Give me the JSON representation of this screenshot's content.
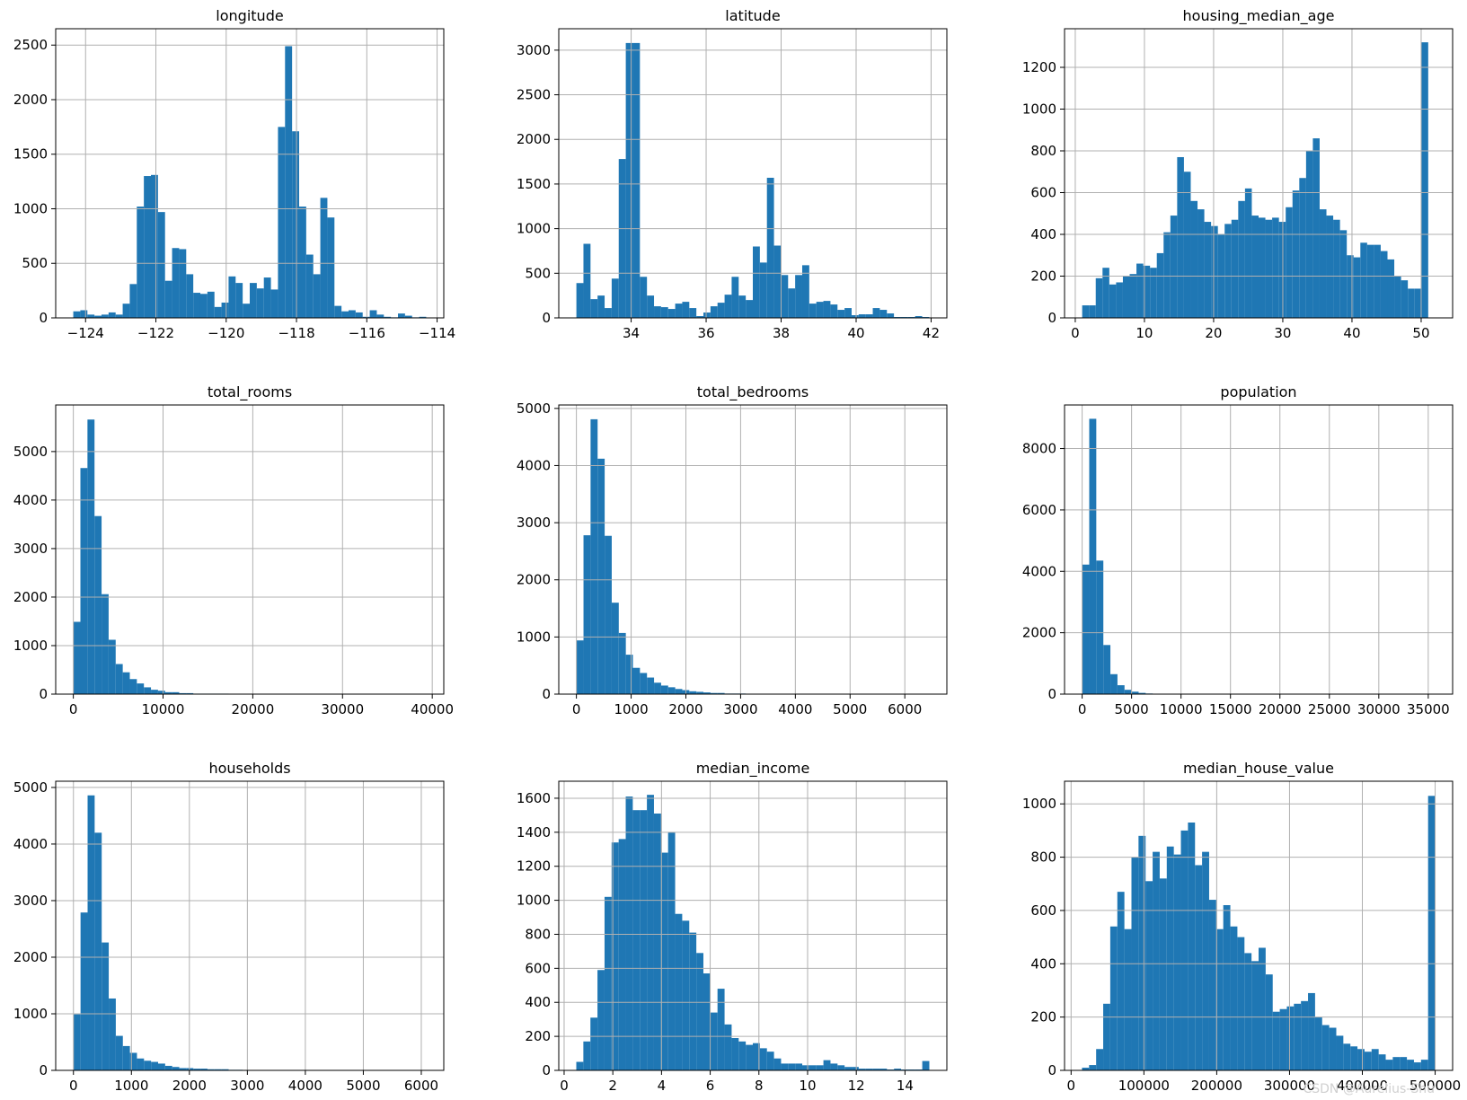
{
  "watermark": "CSDN @Aurelius-Shu",
  "style": {
    "bar_color": "#1f77b4",
    "grid_color": "#b0b0b0"
  },
  "chart_data": [
    {
      "type": "bar",
      "title": "longitude",
      "xlabel": "",
      "ylabel": "",
      "grid": true,
      "xlim": [
        -124.85,
        -113.81
      ],
      "ylim": [
        0,
        2650
      ],
      "xticks": [
        -124,
        -122,
        -120,
        -118,
        -116,
        -114
      ],
      "xtick_labels": [
        "−124",
        "−122",
        "−120",
        "−118",
        "−116",
        "−114"
      ],
      "yticks": [
        0,
        500,
        1000,
        1500,
        2000,
        2500
      ],
      "bin_range": [
        -124.35,
        -114.31
      ],
      "values": [
        60,
        70,
        30,
        20,
        30,
        50,
        30,
        130,
        310,
        1020,
        1300,
        1310,
        970,
        340,
        640,
        630,
        400,
        230,
        220,
        240,
        100,
        140,
        380,
        320,
        130,
        320,
        270,
        370,
        260,
        1750,
        2490,
        1710,
        1020,
        580,
        400,
        1100,
        920,
        110,
        60,
        70,
        50,
        10,
        70,
        30,
        10,
        5,
        40,
        20,
        5,
        10
      ]
    },
    {
      "type": "bar",
      "title": "latitude",
      "xlabel": "",
      "ylabel": "",
      "grid": true,
      "xlim": [
        32.07,
        42.42
      ],
      "ylim": [
        0,
        3240
      ],
      "xticks": [
        34,
        36,
        38,
        40,
        42
      ],
      "xtick_labels": [
        "34",
        "36",
        "38",
        "40",
        "42"
      ],
      "yticks": [
        0,
        500,
        1000,
        1500,
        2000,
        2500,
        3000
      ],
      "bin_range": [
        32.54,
        41.95
      ],
      "values": [
        390,
        830,
        210,
        250,
        110,
        440,
        1780,
        3080,
        3080,
        460,
        250,
        130,
        120,
        100,
        160,
        180,
        110,
        20,
        60,
        130,
        170,
        260,
        460,
        250,
        200,
        800,
        620,
        1570,
        810,
        480,
        330,
        480,
        590,
        160,
        180,
        190,
        150,
        90,
        110,
        30,
        40,
        40,
        110,
        90,
        50,
        10,
        10,
        10,
        20,
        10
      ]
    },
    {
      "type": "bar",
      "title": "housing_median_age",
      "xlabel": "",
      "ylabel": "",
      "grid": true,
      "xlim": [
        -1.55,
        54.55
      ],
      "ylim": [
        0,
        1385
      ],
      "xticks": [
        0,
        10,
        20,
        30,
        40,
        50
      ],
      "xtick_labels": [
        "0",
        "10",
        "20",
        "30",
        "40",
        "50"
      ],
      "yticks": [
        0,
        200,
        400,
        600,
        800,
        1000,
        1200
      ],
      "bin_range": [
        1,
        52
      ],
      "values": [
        60,
        60,
        190,
        240,
        160,
        170,
        200,
        210,
        260,
        250,
        240,
        310,
        410,
        490,
        770,
        700,
        560,
        520,
        460,
        440,
        400,
        450,
        470,
        560,
        620,
        490,
        480,
        470,
        480,
        460,
        530,
        610,
        670,
        800,
        860,
        520,
        490,
        470,
        420,
        300,
        290,
        360,
        350,
        350,
        320,
        280,
        200,
        180,
        140,
        140,
        1320,
        0
      ]
    },
    {
      "type": "bar",
      "title": "total_rooms",
      "xlabel": "",
      "ylabel": "",
      "grid": true,
      "xlim": [
        -1965,
        41285
      ],
      "ylim": [
        0,
        5960
      ],
      "xticks": [
        0,
        10000,
        20000,
        30000,
        40000
      ],
      "xtick_labels": [
        "0",
        "10000",
        "20000",
        "30000",
        "40000"
      ],
      "yticks": [
        0,
        1000,
        2000,
        3000,
        4000,
        5000
      ],
      "bin_range": [
        2,
        39320
      ],
      "values": [
        1490,
        4660,
        5660,
        3670,
        2060,
        1120,
        620,
        450,
        310,
        220,
        140,
        90,
        70,
        40,
        40,
        20,
        20,
        10,
        10,
        10,
        10,
        10,
        5,
        5,
        5,
        5,
        5,
        5,
        5,
        5,
        5,
        5,
        5,
        5,
        5,
        5,
        5,
        5,
        5,
        5,
        5,
        5,
        5,
        5,
        5,
        5,
        5,
        5,
        5,
        5
      ]
    },
    {
      "type": "bar",
      "title": "total_bedrooms",
      "xlabel": "",
      "ylabel": "",
      "grid": true,
      "xlim": [
        -322,
        6768
      ],
      "ylim": [
        0,
        5060
      ],
      "xticks": [
        0,
        1000,
        2000,
        3000,
        4000,
        5000,
        6000
      ],
      "xtick_labels": [
        "0",
        "1000",
        "2000",
        "3000",
        "4000",
        "5000",
        "6000"
      ],
      "yticks": [
        0,
        1000,
        2000,
        3000,
        4000,
        5000
      ],
      "bin_range": [
        1,
        6445
      ],
      "values": [
        940,
        2780,
        4810,
        4120,
        2770,
        1600,
        1070,
        690,
        460,
        370,
        290,
        200,
        150,
        120,
        90,
        70,
        50,
        40,
        30,
        20,
        20,
        10,
        10,
        10,
        5,
        5,
        5,
        5,
        5,
        5,
        5,
        5,
        5,
        5,
        5,
        5,
        5,
        5,
        5,
        5,
        5,
        5,
        5,
        5,
        5,
        5,
        5,
        5,
        5,
        5
      ]
    },
    {
      "type": "bar",
      "title": "population",
      "xlabel": "",
      "ylabel": "",
      "grid": true,
      "xlim": [
        -1780,
        37465
      ],
      "ylim": [
        0,
        9420
      ],
      "xticks": [
        0,
        5000,
        10000,
        15000,
        20000,
        25000,
        30000,
        35000
      ],
      "xtick_labels": [
        "0",
        "5000",
        "10000",
        "15000",
        "20000",
        "25000",
        "30000",
        "35000"
      ],
      "yticks": [
        0,
        2000,
        4000,
        6000,
        8000
      ],
      "bin_range": [
        3,
        35682
      ],
      "values": [
        4220,
        8970,
        4350,
        1600,
        650,
        290,
        140,
        80,
        40,
        20,
        10,
        10,
        5,
        5,
        5,
        5,
        5,
        5,
        5,
        5,
        5,
        5,
        5,
        5,
        5,
        5,
        5,
        5,
        5,
        5,
        5,
        5,
        5,
        5,
        5,
        5,
        5,
        5,
        5,
        5,
        5,
        5,
        5,
        5,
        5,
        5,
        5,
        5,
        5,
        5
      ]
    },
    {
      "type": "bar",
      "title": "households",
      "xlabel": "",
      "ylabel": "",
      "grid": true,
      "xlim": [
        -306,
        6388
      ],
      "ylim": [
        0,
        5110
      ],
      "xticks": [
        0,
        1000,
        2000,
        3000,
        4000,
        5000,
        6000
      ],
      "xtick_labels": [
        "0",
        "1000",
        "2000",
        "3000",
        "4000",
        "5000",
        "6000"
      ],
      "yticks": [
        0,
        1000,
        2000,
        3000,
        4000,
        5000
      ],
      "bin_range": [
        1,
        6082
      ],
      "values": [
        990,
        2790,
        4860,
        4200,
        2260,
        1270,
        610,
        430,
        310,
        210,
        170,
        150,
        120,
        80,
        60,
        40,
        40,
        30,
        30,
        20,
        20,
        20,
        10,
        10,
        5,
        5,
        5,
        5,
        5,
        5,
        5,
        5,
        5,
        5,
        5,
        5,
        5,
        5,
        5,
        5,
        5,
        5,
        5,
        5,
        5,
        5,
        5,
        5,
        5,
        5
      ]
    },
    {
      "type": "bar",
      "title": "median_income",
      "xlabel": "",
      "ylabel": "",
      "grid": true,
      "xlim": [
        -0.22,
        15.72
      ],
      "ylim": [
        0,
        1700
      ],
      "xticks": [
        0,
        2,
        4,
        6,
        8,
        10,
        12,
        14
      ],
      "xtick_labels": [
        "0",
        "2",
        "4",
        "6",
        "8",
        "10",
        "12",
        "14"
      ],
      "yticks": [
        0,
        200,
        400,
        600,
        800,
        1000,
        1200,
        1400,
        1600
      ],
      "bin_range": [
        0.4999,
        15.0001
      ],
      "values": [
        50,
        170,
        310,
        590,
        1020,
        1340,
        1360,
        1610,
        1530,
        1530,
        1620,
        1510,
        1280,
        1400,
        920,
        880,
        810,
        690,
        570,
        340,
        480,
        270,
        190,
        170,
        150,
        160,
        130,
        110,
        70,
        40,
        40,
        40,
        30,
        30,
        30,
        60,
        40,
        30,
        20,
        20,
        10,
        10,
        10,
        10,
        5,
        10,
        5,
        5,
        5,
        55
      ]
    },
    {
      "type": "bar",
      "title": "median_house_value",
      "xlabel": "",
      "ylabel": "",
      "grid": true,
      "xlim": [
        -9000,
        524000
      ],
      "ylim": [
        0,
        1085
      ],
      "xticks": [
        0,
        100000,
        200000,
        300000,
        400000,
        500000
      ],
      "xtick_labels": [
        "0",
        "100000",
        "200000",
        "300000",
        "400000",
        "500000"
      ],
      "yticks": [
        0,
        200,
        400,
        600,
        800,
        1000
      ],
      "bin_range": [
        14999,
        500001
      ],
      "values": [
        10,
        20,
        80,
        250,
        540,
        670,
        530,
        800,
        880,
        710,
        820,
        720,
        840,
        810,
        900,
        930,
        770,
        820,
        640,
        530,
        620,
        540,
        500,
        440,
        410,
        460,
        360,
        220,
        230,
        240,
        250,
        260,
        290,
        200,
        170,
        160,
        130,
        100,
        90,
        80,
        70,
        80,
        60,
        40,
        50,
        50,
        40,
        30,
        40,
        1030
      ]
    }
  ]
}
